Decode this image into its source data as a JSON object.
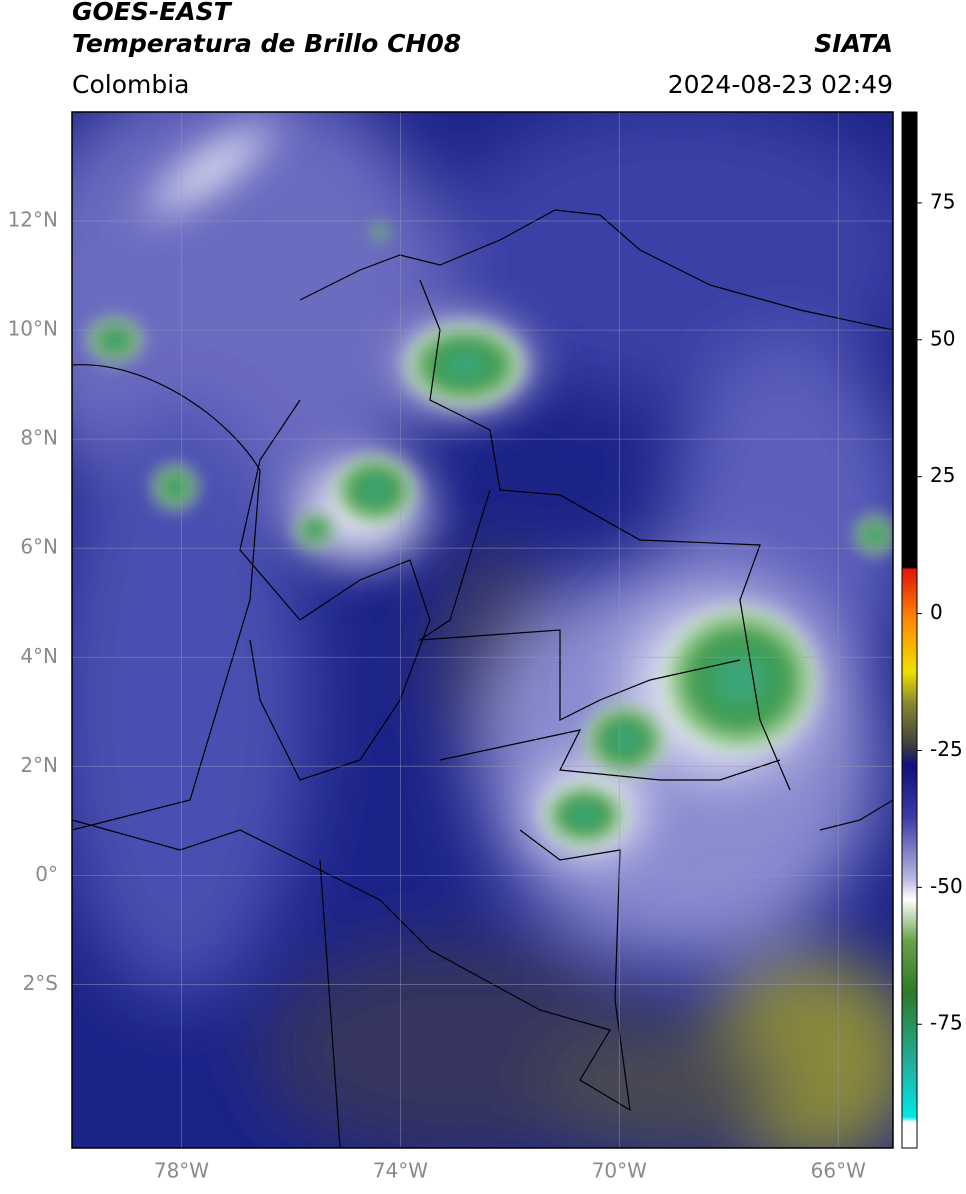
{
  "header": {
    "title": "GOES-EAST",
    "subtitle": "Temperatura de Brillo CH08",
    "region": "Colombia",
    "source": "SIATA",
    "datetime": "2024-08-23 02:49"
  },
  "map": {
    "lonlim": [
      -80,
      -65
    ],
    "latlim": [
      -5,
      14
    ],
    "lon_ticks": [
      {
        "value": -78,
        "label": "78°W"
      },
      {
        "value": -74,
        "label": "74°W"
      },
      {
        "value": -70,
        "label": "70°W"
      },
      {
        "value": -66,
        "label": "66°W"
      }
    ],
    "lat_ticks": [
      {
        "value": 12,
        "label": "12°N"
      },
      {
        "value": 10,
        "label": "10°N"
      },
      {
        "value": 8,
        "label": "8°N"
      },
      {
        "value": 6,
        "label": "6°N"
      },
      {
        "value": 4,
        "label": "4°N"
      },
      {
        "value": 2,
        "label": "2°N"
      },
      {
        "value": 0,
        "label": "0°"
      },
      {
        "value": -2,
        "label": "2°S"
      }
    ],
    "grid": true
  },
  "colorbar": {
    "lim": [
      -97.6,
      91.6
    ],
    "ticks": [
      75,
      50,
      25,
      0,
      -25,
      -50,
      -75
    ]
  }
}
